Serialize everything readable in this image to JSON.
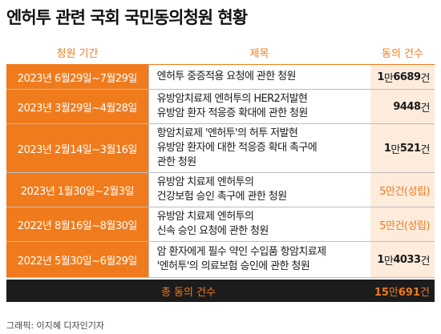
{
  "title": "엔허투 관련 국회 국민동의청원 현황",
  "headers": {
    "period": "청원 기간",
    "subject": "제목",
    "count": "동의 건수"
  },
  "chart_data": {
    "type": "table",
    "title": "엔허투 관련 국회 국민동의청원 현황",
    "columns": [
      "청원 기간",
      "제목",
      "동의 건수"
    ],
    "rows": [
      {
        "period": "2023년 6월29일~7월29일",
        "subject": [
          "엔허투 중증적용 요청에 관한 청원"
        ],
        "count_parts": [
          "1",
          "만",
          "6689",
          "건"
        ],
        "count_value": 16689,
        "highlight": false
      },
      {
        "period": "2023년 3월29일~4월28일",
        "subject": [
          "유방암치료제 엔허투의 HER2저발현",
          "유방암 환자 적응증 확대에 관한 청원"
        ],
        "count_parts": [
          "",
          "",
          "9448",
          "건"
        ],
        "count_value": 9448,
        "highlight": false
      },
      {
        "period": "2023년 2월14일~3월16일",
        "subject": [
          "항암치료제 '엔허투'의 허투 저발현",
          "유방암 환자에 대한 적응증 확대 촉구에",
          "관한 청원"
        ],
        "count_parts": [
          "1",
          "만",
          "521",
          "건"
        ],
        "count_value": 10521,
        "highlight": false
      },
      {
        "period": "2023년 1월30일~2월3일",
        "subject": [
          "유방암 치료제 엔허투의",
          "건강보험 승인 촉구에 관한 청원"
        ],
        "count_parts": [
          "",
          "",
          "5만건(성립)",
          ""
        ],
        "count_value": 50000,
        "highlight": true
      },
      {
        "period": "2022년 8월16일~8월30일",
        "subject": [
          "유방암 치료제 엔허투의",
          "신속 승인 요청에 관한 청원"
        ],
        "count_parts": [
          "",
          "",
          "5만건(성립)",
          ""
        ],
        "count_value": 50000,
        "highlight": true
      },
      {
        "period": "2022년 5월30일~6월29일",
        "subject": [
          "암 환자에게 필수 약인 수입품 항암치료제",
          "'엔허투'의 의료보험 승인에 관한 청원"
        ],
        "count_parts": [
          "1",
          "만",
          "4033",
          "건"
        ],
        "count_value": 14033,
        "highlight": false
      }
    ],
    "total_label": "총 동의 건수",
    "total_parts": [
      "15",
      "만",
      "691",
      "건"
    ],
    "total_value": 150691
  },
  "credit": "그래픽: 이지혜 디자인기자",
  "colors": {
    "accent": "#f07b1d",
    "count_bg": "#fdebdc",
    "total_bg": "#1c1c1c"
  }
}
